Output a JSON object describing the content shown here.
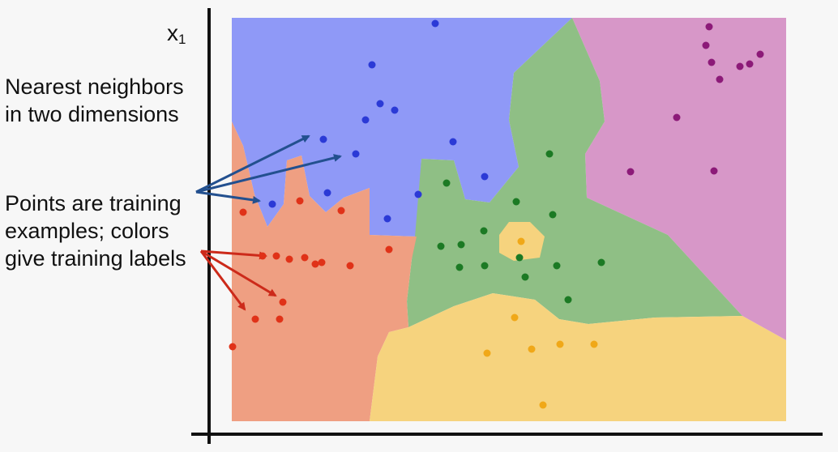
{
  "axis": {
    "y_label": "x",
    "y_label_subscript": "1"
  },
  "annotations": {
    "nearest_neighbors": [
      "Nearest neighbors",
      "in two dimensions"
    ],
    "points": [
      "Points are training",
      "examples; colors",
      "give training labels"
    ]
  },
  "colors": {
    "blue_region": "#8f99f7",
    "blue_point": "#2b3ad6",
    "red_region": "#ef9f82",
    "red_point": "#e03218",
    "green_region": "#8fbf85",
    "green_point": "#1c7a24",
    "yellow_region": "#f6d37e",
    "yellow_point": "#f0a818",
    "purple_region": "#d797c8",
    "purple_point": "#8c1a78",
    "blue_arrow": "#23508f",
    "red_arrow": "#cc2a1a"
  },
  "points": {
    "blue": [
      [
        537,
        29
      ],
      [
        459,
        80
      ],
      [
        469,
        128
      ],
      [
        487,
        136
      ],
      [
        451,
        148
      ],
      [
        399,
        172
      ],
      [
        559,
        175
      ],
      [
        439,
        190
      ],
      [
        598,
        218
      ],
      [
        404,
        238
      ],
      [
        516,
        240
      ],
      [
        336,
        252
      ],
      [
        478,
        270
      ]
    ],
    "red": [
      [
        300,
        262
      ],
      [
        370,
        248
      ],
      [
        421,
        260
      ],
      [
        341,
        316
      ],
      [
        324,
        316
      ],
      [
        357,
        320
      ],
      [
        376,
        318
      ],
      [
        397,
        324
      ],
      [
        389,
        326
      ],
      [
        432,
        328
      ],
      [
        480,
        308
      ],
      [
        349,
        373
      ],
      [
        315,
        394
      ],
      [
        345,
        394
      ],
      [
        287,
        428
      ]
    ],
    "green": [
      [
        678,
        190
      ],
      [
        551,
        226
      ],
      [
        637,
        249
      ],
      [
        682,
        265
      ],
      [
        597,
        285
      ],
      [
        544,
        304
      ],
      [
        569,
        302
      ],
      [
        567,
        330
      ],
      [
        598,
        328
      ],
      [
        641,
        318
      ],
      [
        687,
        328
      ],
      [
        742,
        324
      ],
      [
        648,
        342
      ],
      [
        701,
        370
      ]
    ],
    "yellow": [
      [
        643,
        298
      ],
      [
        635,
        392
      ],
      [
        601,
        436
      ],
      [
        656,
        431
      ],
      [
        691,
        425
      ],
      [
        733,
        425
      ],
      [
        670,
        500
      ]
    ],
    "purple": [
      [
        875,
        33
      ],
      [
        871,
        56
      ],
      [
        878,
        77
      ],
      [
        938,
        67
      ],
      [
        925,
        79
      ],
      [
        913,
        82
      ],
      [
        888,
        98
      ],
      [
        835,
        145
      ],
      [
        778,
        212
      ],
      [
        881,
        211
      ]
    ]
  }
}
